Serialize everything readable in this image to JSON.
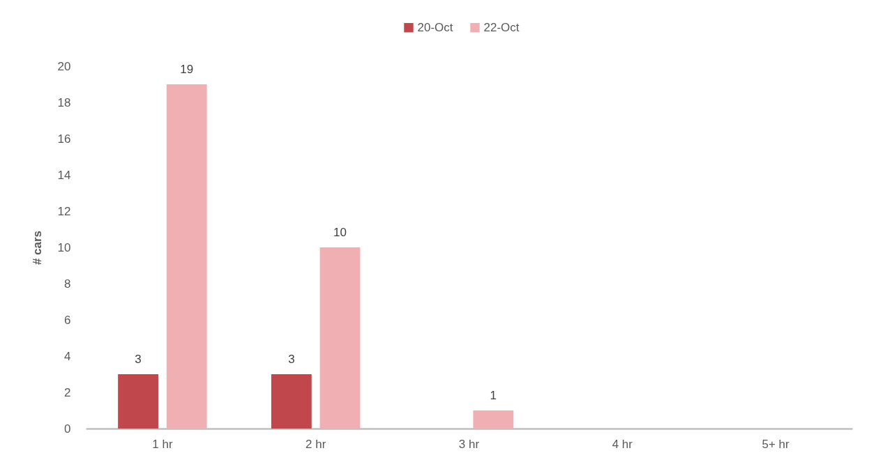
{
  "chart_data": {
    "type": "bar",
    "ylabel": "# cars",
    "categories": [
      "1 hr",
      "2 hr",
      "3 hr",
      "4 hr",
      "5+ hr"
    ],
    "series": [
      {
        "name": "20-Oct",
        "color": "#c0474b",
        "values": [
          3,
          3,
          null,
          null,
          null
        ]
      },
      {
        "name": "22-Oct",
        "color": "#f0b0b3",
        "values": [
          19,
          10,
          1,
          null,
          null
        ]
      }
    ],
    "ylim": [
      0,
      20
    ],
    "yticks": [
      0,
      2,
      4,
      6,
      8,
      10,
      12,
      14,
      16,
      18,
      20
    ],
    "data_labels": true,
    "legend": "top",
    "grid": false
  }
}
